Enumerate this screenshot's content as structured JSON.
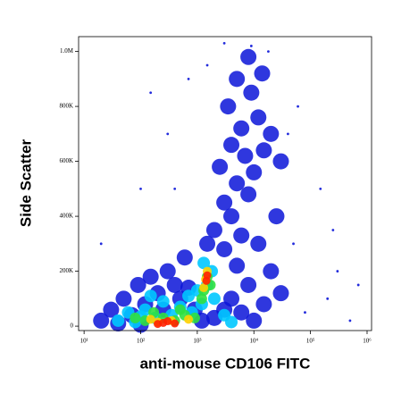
{
  "chart_data": {
    "type": "scatter",
    "x_label": "anti-mouse CD106 FITC",
    "y_label": "Side Scatter",
    "xscale": "log",
    "grid": false,
    "xlim": [
      8,
      1200000
    ],
    "ylim": [
      -16000,
      1054000
    ],
    "xticks": [
      {
        "value": 10,
        "label": "10¹"
      },
      {
        "value": 100,
        "label": "10²"
      },
      {
        "value": 1000,
        "label": "10³"
      },
      {
        "value": 10000,
        "label": "10⁴"
      },
      {
        "value": 100000,
        "label": "10⁵"
      },
      {
        "value": 1000000,
        "label": "10⁶"
      }
    ],
    "yticks": [
      0,
      {
        "value": 200000,
        "label": "200K"
      },
      {
        "value": 400000,
        "label": "400K"
      },
      {
        "value": 600000,
        "label": "600K"
      },
      {
        "value": 800000,
        "label": "800K"
      },
      {
        "value": 1000000,
        "label": "1.0M"
      }
    ],
    "series": [
      {
        "color": "#0a14d8",
        "x": [
          20,
          30,
          40,
          50,
          70,
          90,
          100,
          120,
          150,
          200,
          250,
          300,
          400,
          500,
          700,
          900,
          1200,
          2000,
          3000,
          4000,
          6000,
          8000,
          10000,
          15000,
          20000,
          30000,
          600,
          5000,
          3000,
          12000,
          2000,
          4000,
          6000,
          3000,
          8000,
          5000,
          2500,
          10000,
          7000,
          4000,
          15000,
          6000,
          12000,
          3500,
          9000,
          20000,
          5000,
          14000,
          8000,
          25000,
          1500,
          30000
        ],
        "y": [
          20000,
          60000,
          10000,
          100000,
          40000,
          150000,
          5000,
          80000,
          180000,
          120000,
          60000,
          200000,
          150000,
          100000,
          140000,
          60000,
          20000,
          30000,
          60000,
          100000,
          50000,
          150000,
          20000,
          80000,
          200000,
          120000,
          250000,
          220000,
          280000,
          300000,
          350000,
          400000,
          330000,
          450000,
          480000,
          520000,
          580000,
          560000,
          620000,
          660000,
          640000,
          720000,
          760000,
          800000,
          850000,
          700000,
          900000,
          920000,
          980000,
          400000,
          300000,
          600000
        ]
      },
      {
        "color": "#0a14d8",
        "x": [
          150,
          300,
          100,
          50000,
          200000,
          500000,
          300000,
          80000,
          1500,
          400,
          60000,
          150000,
          20,
          700000,
          250000,
          40000,
          9000,
          18000,
          3000,
          700
        ],
        "y": [
          850000,
          700000,
          500000,
          300000,
          100000,
          20000,
          200000,
          50000,
          950000,
          500000,
          800000,
          500000,
          300000,
          150000,
          350000,
          700000,
          1020000,
          1000000,
          1030000,
          900000
        ]
      },
      {
        "color": "#00c8ff",
        "x": [
          40,
          60,
          80,
          120,
          180,
          250,
          350,
          500,
          800,
          1200,
          1000,
          1500,
          2000,
          1300,
          1800,
          700,
          3000,
          150,
          4000,
          100
        ],
        "y": [
          20000,
          50000,
          15000,
          60000,
          30000,
          90000,
          40000,
          70000,
          50000,
          80000,
          130000,
          150000,
          100000,
          230000,
          200000,
          110000,
          40000,
          110000,
          15000,
          35000
        ]
      },
      {
        "color": "#30e040",
        "x": [
          80,
          120,
          170,
          250,
          400,
          600,
          900,
          1300,
          1500,
          1200,
          1700,
          500
        ],
        "y": [
          30000,
          20000,
          50000,
          30000,
          20000,
          40000,
          30000,
          130000,
          180000,
          100000,
          150000,
          60000
        ]
      },
      {
        "color": "#ffd000",
        "x": [
          150,
          200,
          350,
          1400,
          1500,
          700,
          1300
        ],
        "y": [
          25000,
          15000,
          20000,
          170000,
          200000,
          25000,
          140000
        ]
      },
      {
        "color": "#ff2000",
        "x": [
          250,
          300,
          400,
          200,
          1500,
          1450
        ],
        "y": [
          12000,
          18000,
          10000,
          8000,
          185000,
          165000
        ]
      }
    ]
  }
}
